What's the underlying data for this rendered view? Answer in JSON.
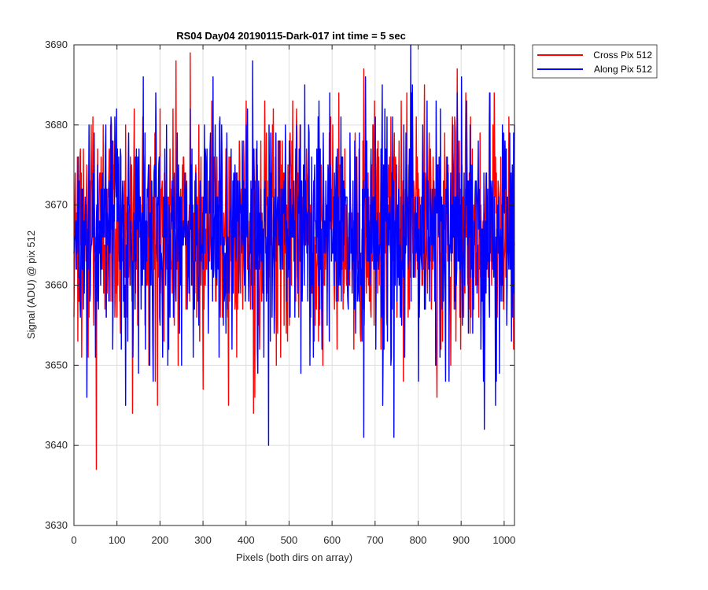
{
  "figure_bg": "#ffffff",
  "chart_data": {
    "type": "line",
    "title": "RS04 Day04 20190115-Dark-017 int time = 5 sec",
    "xlabel": "Pixels (both dirs on array)",
    "ylabel": "Signal (ADU) @ pix 512",
    "xlim": [
      0,
      1024
    ],
    "ylim": [
      3630,
      3690
    ],
    "xticks": [
      0,
      100,
      200,
      300,
      400,
      500,
      600,
      700,
      800,
      900,
      1000
    ],
    "yticks": [
      3630,
      3640,
      3650,
      3660,
      3670,
      3680,
      3690
    ],
    "grid": true,
    "legend_position": "outside-top-right",
    "noise": {
      "mean": 3667,
      "n": 1024,
      "ymin": 3637,
      "ymax": 3690
    },
    "series": [
      {
        "name": "Cross Pix 512",
        "color": "#ff0000",
        "x": [
          0,
          3,
          9,
          18,
          22,
          33,
          40,
          44,
          52,
          68,
          85,
          100,
          107,
          116,
          120,
          130,
          136,
          140,
          153,
          160,
          176,
          189,
          200,
          209,
          237,
          242,
          250,
          270,
          277,
          290,
          300,
          320,
          345,
          400,
          417,
          420,
          461,
          470,
          500,
          525,
          570,
          615,
          640,
          650,
          673,
          684,
          700,
          713,
          736,
          750,
          760,
          776,
          780,
          795,
          830,
          843,
          845,
          890,
          910,
          920,
          940,
          965,
          976,
          1000,
          1010,
          1016,
          1021
        ],
        "y": [
          3656,
          3674,
          3653,
          3651,
          3677,
          3651,
          3680,
          3681,
          3637,
          3680,
          3680,
          3656,
          3658,
          3662,
          3680,
          3660,
          3644,
          3682,
          3666,
          3681,
          3662,
          3648,
          3682,
          3653,
          3688,
          3650,
          3656,
          3689,
          3658,
          3680,
          3647,
          3683,
          3656,
          3683,
          3644,
          3646,
          3680,
          3650,
          3655,
          3680,
          3655,
          3684,
          3660,
          3652,
          3687,
          3660,
          3675,
          3652,
          3681,
          3656,
          3683,
          3656,
          3675,
          3681,
          3657,
          3646,
          3665,
          3687,
          3684,
          3654,
          3656,
          3684,
          3684,
          3664,
          3681,
          3656,
          3652
        ]
      },
      {
        "name": "Along Pix 512",
        "color": "#0000ff",
        "x": [
          0,
          5,
          15,
          28,
          30,
          50,
          60,
          75,
          90,
          104,
          120,
          137,
          150,
          166,
          176,
          184,
          190,
          218,
          250,
          270,
          290,
          318,
          328,
          330,
          367,
          400,
          415,
          427,
          445,
          452,
          478,
          500,
          527,
          536,
          556,
          569,
          571,
          588,
          600,
          620,
          636,
          654,
          660,
          673,
          690,
          700,
          727,
          736,
          743,
          766,
          782,
          786,
          800,
          820,
          840,
          850,
          871,
          880,
          900,
          920,
          953,
          956,
          966,
          979,
          998,
          1005,
          1016,
          1023
        ],
        "y": [
          3664,
          3662,
          3656,
          3670,
          3646,
          3651,
          3664,
          3656,
          3652,
          3676,
          3645,
          3651,
          3649,
          3652,
          3650,
          3648,
          3684,
          3650,
          3650,
          3682,
          3655,
          3667,
          3680,
          3661,
          3652,
          3680,
          3688,
          3649,
          3666,
          3640,
          3666,
          3678,
          3649,
          3685,
          3651,
          3683,
          3657,
          3655,
          3664,
          3681,
          3658,
          3654,
          3660,
          3641,
          3677,
          3681,
          3681,
          3650,
          3641,
          3680,
          3690,
          3685,
          3648,
          3683,
          3650,
          3651,
          3648,
          3680,
          3686,
          3680,
          3642,
          3666,
          3684,
          3645,
          3679,
          3655,
          3653,
          3680
        ]
      }
    ]
  }
}
